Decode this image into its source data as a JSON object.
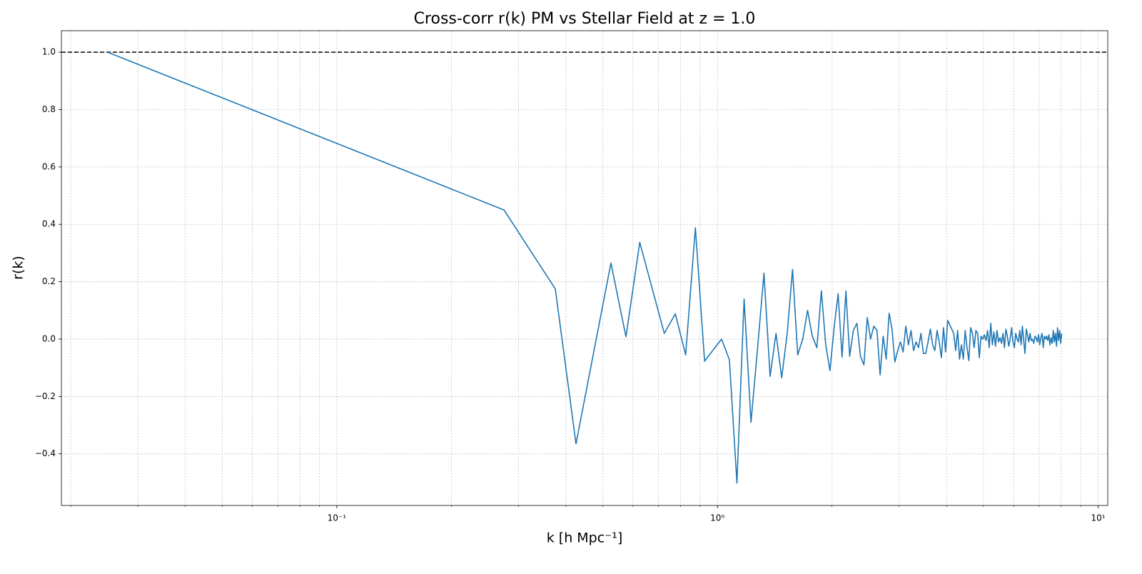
{
  "chart_data": {
    "type": "line",
    "title": "Cross-corr r(k) PM vs Stellar Field at z = 1.0",
    "xlabel": "k [h Mpc⁻¹]",
    "ylabel": "r(k)",
    "xscale": "log",
    "grid": true,
    "color": "#1f77b4",
    "reference_line": 1.0,
    "xlim": [
      0.0189,
      10.6
    ],
    "ylim": [
      -0.58,
      1.075
    ],
    "xticks": [
      {
        "value": 0.1,
        "label": "10⁻¹"
      },
      {
        "value": 1,
        "label": "10⁰"
      },
      {
        "value": 10,
        "label": "10¹"
      }
    ],
    "xminorticks": [
      0.02,
      0.03,
      0.04,
      0.05,
      0.06,
      0.07,
      0.08,
      0.09,
      0.2,
      0.3,
      0.4,
      0.5,
      0.6,
      0.7,
      0.8,
      0.9,
      2,
      3,
      4,
      5,
      6,
      7,
      8,
      9
    ],
    "yticks": [
      {
        "value": -0.4,
        "label": "−0.4"
      },
      {
        "value": -0.2,
        "label": "−0.2"
      },
      {
        "value": 0,
        "label": "0.0"
      },
      {
        "value": 0.2,
        "label": "0.2"
      },
      {
        "value": 0.4,
        "label": "0.4"
      },
      {
        "value": 0.6,
        "label": "0.6"
      },
      {
        "value": 0.8,
        "label": "0.8"
      },
      {
        "value": 1,
        "label": "1.0"
      }
    ],
    "x": [
      0.025,
      0.275,
      0.375,
      0.425,
      0.525,
      0.575,
      0.625,
      0.725,
      0.775,
      0.825,
      0.875,
      0.925,
      1.025,
      1.075,
      1.125,
      1.175,
      1.225,
      1.275,
      1.325,
      1.375,
      1.425,
      1.475,
      1.525,
      1.575,
      1.625,
      1.675,
      1.725,
      1.775,
      1.825,
      1.875,
      1.925,
      1.975,
      2.025,
      2.075,
      2.125,
      2.175,
      2.225,
      2.275,
      2.325,
      2.375,
      2.425,
      2.475,
      2.525,
      2.575,
      2.625,
      2.675,
      2.725,
      2.775,
      2.825,
      2.875,
      2.925,
      2.975,
      3.025,
      3.075,
      3.125,
      3.175,
      3.225,
      3.275,
      3.325,
      3.375,
      3.425,
      3.475,
      3.525,
      3.575,
      3.625,
      3.675,
      3.725,
      3.775,
      3.825,
      3.875,
      3.925,
      3.975,
      4.025,
      4.075,
      4.125,
      4.175,
      4.225,
      4.275,
      4.325,
      4.375,
      4.425,
      4.475,
      4.525,
      4.575,
      4.625,
      4.675,
      4.725,
      4.775,
      4.825,
      4.875,
      4.925,
      4.975,
      5.025,
      5.075,
      5.125,
      5.175,
      5.225,
      5.275,
      5.325,
      5.375,
      5.425,
      5.475,
      5.525,
      5.575,
      5.625,
      5.675,
      5.725,
      5.775,
      5.825,
      5.875,
      5.925,
      5.975,
      6.025,
      6.075,
      6.125,
      6.175,
      6.225,
      6.275,
      6.325,
      6.375,
      6.425,
      6.475,
      6.525,
      6.575,
      6.625,
      6.675,
      6.725,
      6.775,
      6.825,
      6.875,
      6.925,
      6.975,
      7.025,
      7.075,
      7.125,
      7.175,
      7.225,
      7.275,
      7.325,
      7.375,
      7.425,
      7.475,
      7.525,
      7.575,
      7.625,
      7.675,
      7.725,
      7.775,
      7.825,
      7.875,
      7.925,
      7.975,
      8.025
    ],
    "values": [
      1.0,
      0.45,
      0.175,
      -0.365,
      0.265,
      0.008,
      0.337,
      0.02,
      0.088,
      -0.055,
      0.388,
      -0.077,
      0.0,
      -0.072,
      -0.502,
      0.14,
      -0.29,
      -0.03,
      0.23,
      -0.13,
      0.02,
      -0.135,
      0.02,
      0.243,
      -0.055,
      0.0,
      0.1,
      0.01,
      -0.03,
      0.168,
      -0.02,
      -0.11,
      0.04,
      0.158,
      -0.063,
      0.168,
      -0.06,
      0.03,
      0.055,
      -0.06,
      -0.09,
      0.075,
      0.0,
      0.045,
      0.03,
      -0.125,
      0.01,
      -0.07,
      0.09,
      0.035,
      -0.08,
      -0.04,
      -0.01,
      -0.045,
      0.045,
      -0.02,
      0.03,
      -0.04,
      -0.01,
      -0.03,
      0.02,
      -0.05,
      -0.05,
      -0.01,
      0.035,
      -0.02,
      -0.04,
      0.03,
      -0.01,
      -0.065,
      0.04,
      -0.045,
      0.065,
      0.05,
      0.035,
      0.02,
      -0.04,
      0.03,
      -0.07,
      -0.02,
      -0.07,
      0.03,
      -0.03,
      -0.075,
      0.04,
      0.02,
      -0.03,
      0.03,
      0.02,
      -0.065,
      0.01,
      0.0,
      0.015,
      -0.005,
      0.03,
      -0.03,
      0.055,
      -0.02,
      0.025,
      -0.025,
      0.03,
      -0.01,
      0.005,
      -0.015,
      0.02,
      -0.03,
      0.035,
      0.01,
      -0.025,
      0.0,
      0.04,
      -0.01,
      -0.03,
      0.02,
      0.0,
      -0.01,
      0.03,
      -0.02,
      0.045,
      -0.005,
      -0.05,
      0.035,
      0.015,
      -0.01,
      0.02,
      -0.005,
      0.0,
      -0.015,
      0.01,
      0.005,
      -0.01,
      0.015,
      -0.02,
      0.005,
      0.02,
      -0.03,
      0.01,
      0.0,
      0.01,
      -0.005,
      0.015,
      -0.02,
      0.005,
      -0.015,
      0.03,
      -0.01,
      0.02,
      -0.025,
      0.04,
      -0.005,
      0.03,
      -0.015,
      0.02
    ]
  }
}
